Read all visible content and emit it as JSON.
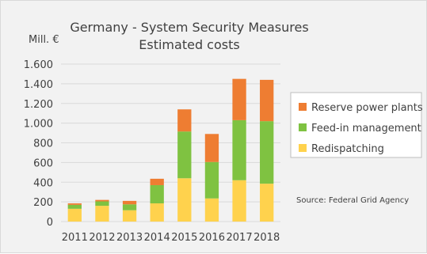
{
  "chart_data": {
    "type": "bar",
    "stacked": true,
    "title": "Germany - System Security Measures",
    "subtitle": "Estimated costs",
    "ylabel": "Mill. €",
    "xlabel": "",
    "categories": [
      "2011",
      "2012",
      "2013",
      "2014",
      "2015",
      "2016",
      "2017",
      "2018"
    ],
    "ylim": [
      0,
      1600
    ],
    "yticks": [
      0,
      200,
      400,
      600,
      800,
      1000,
      1200,
      1400,
      1600
    ],
    "ytick_labels": [
      "0",
      "200",
      "400",
      "600",
      "800",
      "1.000",
      "1.200",
      "1.400",
      "1.600"
    ],
    "grid": true,
    "legend_position": "right",
    "series": [
      {
        "name": "Redispatching",
        "color": "#ffd24d",
        "values": [
          130,
          160,
          115,
          185,
          440,
          235,
          420,
          385
        ]
      },
      {
        "name": "Feed-in management",
        "color": "#7fc241",
        "values": [
          40,
          45,
          60,
          185,
          475,
          370,
          610,
          635
        ]
      },
      {
        "name": "Reserve power plants",
        "color": "#ee7d32",
        "values": [
          15,
          15,
          35,
          65,
          225,
          285,
          420,
          420
        ]
      }
    ],
    "legend_order": [
      "Reserve power plants",
      "Feed-in management",
      "Redispatching"
    ],
    "source": "Source: Federal Grid Agency"
  }
}
